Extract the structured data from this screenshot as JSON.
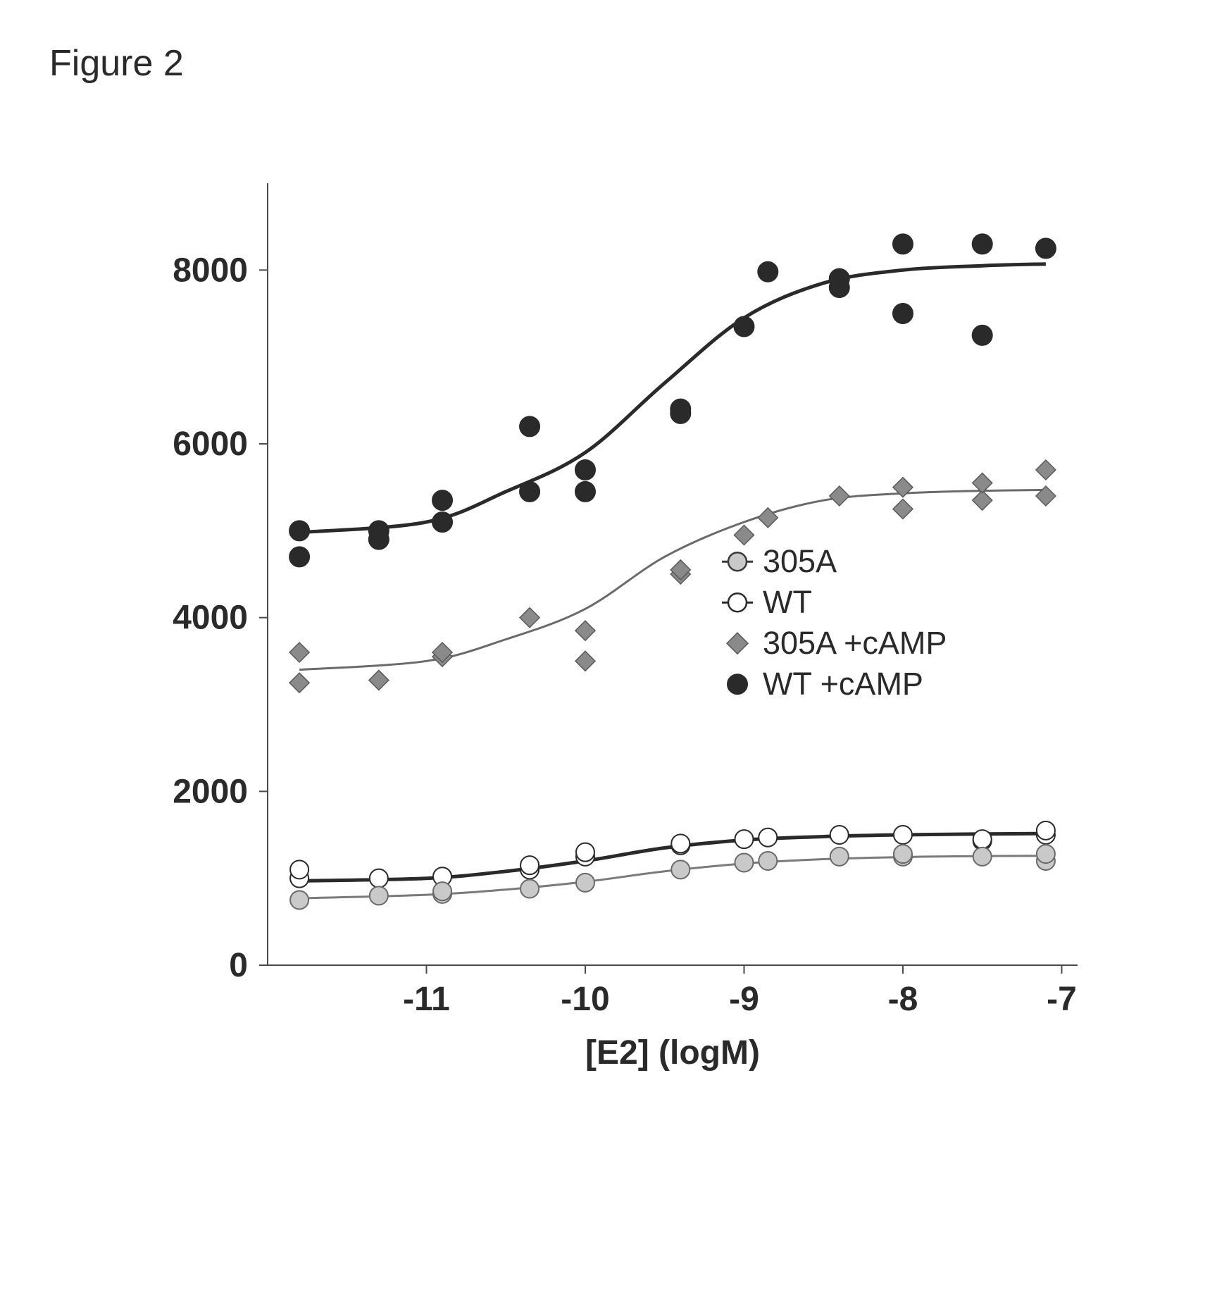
{
  "figure_title": "Figure 2",
  "chart": {
    "type": "line-scatter",
    "background_color": "#ffffff",
    "plot_border_color": "#4a4a4a",
    "plot_border_width": 2,
    "x_axis": {
      "label": "[E2] (logM)",
      "label_fontsize": 48,
      "min": -12,
      "max": -6.9,
      "ticks": [
        -11,
        -10,
        -9,
        -8,
        -7
      ],
      "tick_fontsize": 48
    },
    "y_axis": {
      "min": 0,
      "max": 9000,
      "ticks": [
        0,
        2000,
        4000,
        6000,
        8000
      ],
      "tick_fontsize": 48
    },
    "legend": {
      "x_position": 0.58,
      "y_position": 0.48,
      "fontsize": 45,
      "items": [
        {
          "label": "305A",
          "marker_fill": "#c9c9c9",
          "marker_stroke": "#3a3a3a",
          "line_stroke": "#3a3a3a",
          "marker_type": "circle-hline"
        },
        {
          "label": "WT",
          "marker_fill": "#ffffff",
          "marker_stroke": "#2a2a2a",
          "line_stroke": "#2a2a2a",
          "marker_type": "circle-hline"
        },
        {
          "label": "305A +cAMP",
          "marker_fill": "#8a8a8a",
          "marker_stroke": "#5a5a5a",
          "marker_type": "diamond-filled"
        },
        {
          "label": "WT +cAMP",
          "marker_fill": "#2a2a2a",
          "marker_stroke": "#2a2a2a",
          "marker_type": "circle-filled"
        }
      ]
    },
    "series": [
      {
        "name": "WT_cAMP",
        "marker_fill": "#2a2a2a",
        "marker_stroke": "#2a2a2a",
        "marker_size": 14,
        "line_color": "#2a2a2a",
        "line_width": 5,
        "points": [
          {
            "x": -11.8,
            "y": 4700
          },
          {
            "x": -11.8,
            "y": 5000
          },
          {
            "x": -11.3,
            "y": 4900
          },
          {
            "x": -11.3,
            "y": 5000
          },
          {
            "x": -10.9,
            "y": 5100
          },
          {
            "x": -10.9,
            "y": 5350
          },
          {
            "x": -10.35,
            "y": 5450
          },
          {
            "x": -10.35,
            "y": 6200
          },
          {
            "x": -10,
            "y": 5450
          },
          {
            "x": -10,
            "y": 5700
          },
          {
            "x": -9.4,
            "y": 6350
          },
          {
            "x": -9.4,
            "y": 6400
          },
          {
            "x": -9.0,
            "y": 7350
          },
          {
            "x": -8.85,
            "y": 7980
          },
          {
            "x": -8.4,
            "y": 7800
          },
          {
            "x": -8.4,
            "y": 7900
          },
          {
            "x": -8.0,
            "y": 7500
          },
          {
            "x": -8.0,
            "y": 8300
          },
          {
            "x": -7.5,
            "y": 7250
          },
          {
            "x": -7.5,
            "y": 8300
          },
          {
            "x": -7.1,
            "y": 8250
          }
        ],
        "fit_line": [
          {
            "x": -11.8,
            "y": 4980
          },
          {
            "x": -11.0,
            "y": 5100
          },
          {
            "x": -10.5,
            "y": 5450
          },
          {
            "x": -10.0,
            "y": 5900
          },
          {
            "x": -9.5,
            "y": 6700
          },
          {
            "x": -9.0,
            "y": 7450
          },
          {
            "x": -8.5,
            "y": 7850
          },
          {
            "x": -8.0,
            "y": 8000
          },
          {
            "x": -7.5,
            "y": 8050
          },
          {
            "x": -7.1,
            "y": 8070
          }
        ]
      },
      {
        "name": "305A_cAMP",
        "marker_fill": "#8a8a8a",
        "marker_stroke": "#5a5a5a",
        "marker_size": 14,
        "line_color": "#6a6a6a",
        "line_width": 3,
        "points": [
          {
            "x": -11.8,
            "y": 3250
          },
          {
            "x": -11.8,
            "y": 3600
          },
          {
            "x": -11.3,
            "y": 3280
          },
          {
            "x": -10.9,
            "y": 3550
          },
          {
            "x": -10.9,
            "y": 3600
          },
          {
            "x": -10.35,
            "y": 4000
          },
          {
            "x": -10,
            "y": 3500
          },
          {
            "x": -10,
            "y": 3850
          },
          {
            "x": -9.4,
            "y": 4500
          },
          {
            "x": -9.4,
            "y": 4550
          },
          {
            "x": -9.0,
            "y": 4950
          },
          {
            "x": -8.85,
            "y": 5150
          },
          {
            "x": -8.4,
            "y": 5400
          },
          {
            "x": -8.0,
            "y": 5250
          },
          {
            "x": -8.0,
            "y": 5500
          },
          {
            "x": -7.5,
            "y": 5350
          },
          {
            "x": -7.5,
            "y": 5550
          },
          {
            "x": -7.1,
            "y": 5400
          },
          {
            "x": -7.1,
            "y": 5700
          }
        ],
        "fit_line": [
          {
            "x": -11.8,
            "y": 3400
          },
          {
            "x": -11.0,
            "y": 3500
          },
          {
            "x": -10.5,
            "y": 3750
          },
          {
            "x": -10.0,
            "y": 4100
          },
          {
            "x": -9.5,
            "y": 4700
          },
          {
            "x": -9.0,
            "y": 5100
          },
          {
            "x": -8.5,
            "y": 5350
          },
          {
            "x": -8.0,
            "y": 5430
          },
          {
            "x": -7.5,
            "y": 5460
          },
          {
            "x": -7.1,
            "y": 5470
          }
        ]
      },
      {
        "name": "WT",
        "marker_fill": "#ffffff",
        "marker_stroke": "#2a2a2a",
        "marker_size": 13,
        "line_color": "#2a2a2a",
        "line_width": 5,
        "points": [
          {
            "x": -11.8,
            "y": 1000
          },
          {
            "x": -11.8,
            "y": 1100
          },
          {
            "x": -11.3,
            "y": 1000
          },
          {
            "x": -10.9,
            "y": 1020
          },
          {
            "x": -10.35,
            "y": 1100
          },
          {
            "x": -10.35,
            "y": 1150
          },
          {
            "x": -10,
            "y": 1250
          },
          {
            "x": -10,
            "y": 1300
          },
          {
            "x": -9.4,
            "y": 1380
          },
          {
            "x": -9.4,
            "y": 1400
          },
          {
            "x": -9.0,
            "y": 1450
          },
          {
            "x": -8.85,
            "y": 1470
          },
          {
            "x": -8.4,
            "y": 1500
          },
          {
            "x": -8.0,
            "y": 1500
          },
          {
            "x": -7.5,
            "y": 1430
          },
          {
            "x": -7.5,
            "y": 1450
          },
          {
            "x": -7.1,
            "y": 1500
          },
          {
            "x": -7.1,
            "y": 1550
          }
        ],
        "fit_line": [
          {
            "x": -11.8,
            "y": 970
          },
          {
            "x": -11.0,
            "y": 1000
          },
          {
            "x": -10.5,
            "y": 1080
          },
          {
            "x": -10.0,
            "y": 1200
          },
          {
            "x": -9.5,
            "y": 1350
          },
          {
            "x": -9.0,
            "y": 1440
          },
          {
            "x": -8.5,
            "y": 1480
          },
          {
            "x": -8.0,
            "y": 1500
          },
          {
            "x": -7.5,
            "y": 1510
          },
          {
            "x": -7.1,
            "y": 1515
          }
        ]
      },
      {
        "name": "305A",
        "marker_fill": "#c9c9c9",
        "marker_stroke": "#6a6a6a",
        "marker_size": 13,
        "line_color": "#7a7a7a",
        "line_width": 3,
        "points": [
          {
            "x": -11.8,
            "y": 750
          },
          {
            "x": -11.3,
            "y": 800
          },
          {
            "x": -10.9,
            "y": 820
          },
          {
            "x": -10.9,
            "y": 850
          },
          {
            "x": -10.35,
            "y": 880
          },
          {
            "x": -10,
            "y": 950
          },
          {
            "x": -9.4,
            "y": 1100
          },
          {
            "x": -9.0,
            "y": 1180
          },
          {
            "x": -8.85,
            "y": 1200
          },
          {
            "x": -8.4,
            "y": 1250
          },
          {
            "x": -8.0,
            "y": 1250
          },
          {
            "x": -8.0,
            "y": 1280
          },
          {
            "x": -7.5,
            "y": 1250
          },
          {
            "x": -7.1,
            "y": 1200
          },
          {
            "x": -7.1,
            "y": 1280
          }
        ],
        "fit_line": [
          {
            "x": -11.8,
            "y": 770
          },
          {
            "x": -11.0,
            "y": 810
          },
          {
            "x": -10.5,
            "y": 870
          },
          {
            "x": -10.0,
            "y": 960
          },
          {
            "x": -9.5,
            "y": 1080
          },
          {
            "x": -9.0,
            "y": 1170
          },
          {
            "x": -8.5,
            "y": 1220
          },
          {
            "x": -8.0,
            "y": 1245
          },
          {
            "x": -7.5,
            "y": 1255
          },
          {
            "x": -7.1,
            "y": 1258
          }
        ]
      }
    ]
  }
}
